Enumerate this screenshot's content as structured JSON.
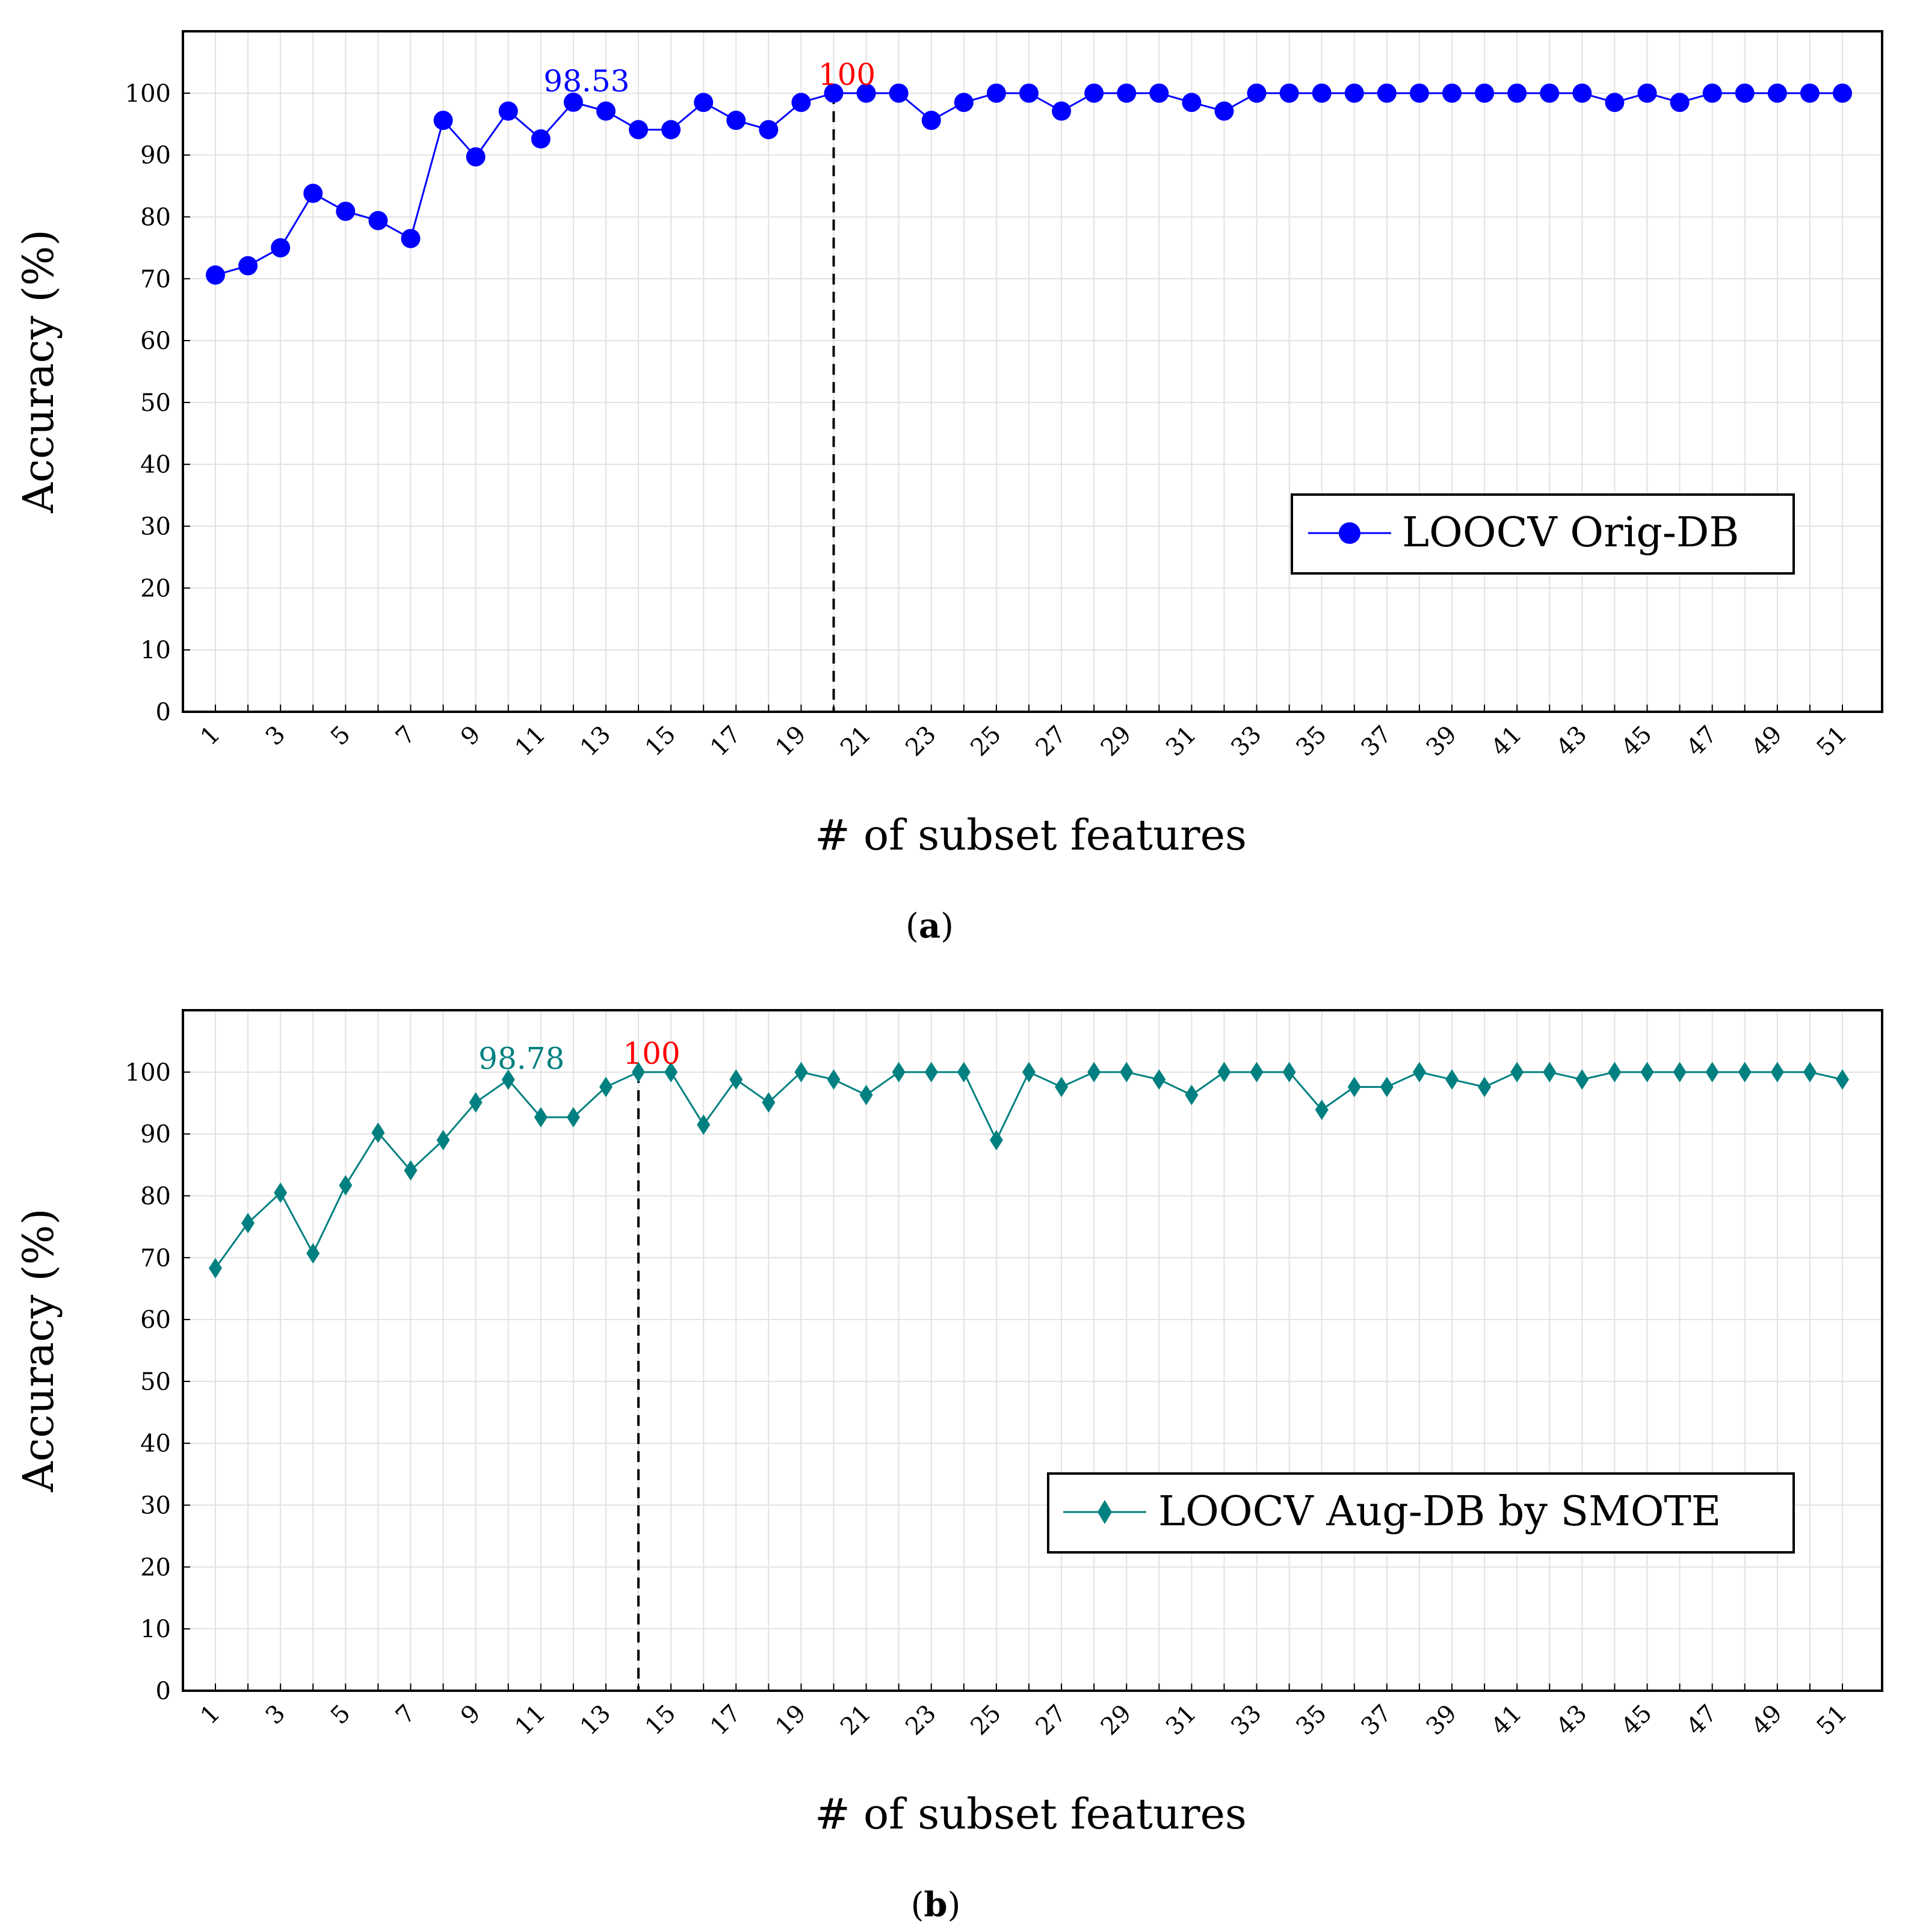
{
  "chart_data": [
    {
      "type": "line",
      "panel_label": "a",
      "xlabel": "# of subset features",
      "ylabel": "Accuracy (%)",
      "ylim": [
        0,
        110
      ],
      "yticks": [
        "0",
        "10",
        "20",
        "30",
        "40",
        "50",
        "60",
        "70",
        "80",
        "90",
        "100"
      ],
      "xticks": [
        "1",
        "3",
        "5",
        "7",
        "9",
        "11",
        "13",
        "15",
        "17",
        "19",
        "21",
        "23",
        "25",
        "27",
        "29",
        "31",
        "33",
        "35",
        "37",
        "39",
        "41",
        "43",
        "45",
        "47",
        "49",
        "51"
      ],
      "grid": true,
      "legend_position": "right",
      "series": [
        {
          "name": "LOOCV Orig-DB",
          "color": "#0000ff",
          "marker": "circle",
          "x": [
            1,
            2,
            3,
            4,
            5,
            6,
            7,
            8,
            9,
            10,
            11,
            12,
            13,
            14,
            15,
            16,
            17,
            18,
            19,
            20,
            21,
            22,
            23,
            24,
            25,
            26,
            27,
            28,
            29,
            30,
            31,
            32,
            33,
            34,
            35,
            36,
            37,
            38,
            39,
            40,
            41,
            42,
            43,
            44,
            45,
            46,
            47,
            48,
            49,
            50,
            51
          ],
          "values": [
            70.6,
            72.1,
            75,
            83.8,
            80.9,
            79.4,
            76.5,
            95.6,
            89.7,
            97.1,
            92.6,
            98.53,
            97.1,
            94.1,
            94.1,
            98.5,
            95.6,
            94.1,
            98.5,
            100,
            100,
            100,
            95.6,
            98.5,
            100,
            100,
            97.1,
            100,
            100,
            100,
            98.5,
            97.1,
            100,
            100,
            100,
            100,
            100,
            100,
            100,
            100,
            100,
            100,
            100,
            98.5,
            100,
            98.5,
            100,
            100,
            100,
            100,
            100
          ]
        }
      ],
      "annotations": [
        {
          "x": 12,
          "y": 98.53,
          "text": "98.53",
          "color": "#0000ff"
        },
        {
          "x": 20,
          "y": 100,
          "text": "100",
          "color": "#ff0000",
          "vline": true
        }
      ]
    },
    {
      "type": "line",
      "panel_label": "b",
      "xlabel": "# of subset features",
      "ylabel": "Accuracy (%)",
      "ylim": [
        0,
        110
      ],
      "yticks": [
        "0",
        "10",
        "20",
        "30",
        "40",
        "50",
        "60",
        "70",
        "80",
        "90",
        "100"
      ],
      "xticks": [
        "1",
        "3",
        "5",
        "7",
        "9",
        "11",
        "13",
        "15",
        "17",
        "19",
        "21",
        "23",
        "25",
        "27",
        "29",
        "31",
        "33",
        "35",
        "37",
        "39",
        "41",
        "43",
        "45",
        "47",
        "49",
        "51"
      ],
      "grid": true,
      "legend_position": "right",
      "series": [
        {
          "name": "LOOCV Aug-DB by SMOTE",
          "color": "#008080",
          "marker": "diamond",
          "x": [
            1,
            2,
            3,
            4,
            5,
            6,
            7,
            8,
            9,
            10,
            11,
            12,
            13,
            14,
            15,
            16,
            17,
            18,
            19,
            20,
            21,
            22,
            23,
            24,
            25,
            26,
            27,
            28,
            29,
            30,
            31,
            32,
            33,
            34,
            35,
            36,
            37,
            38,
            39,
            40,
            41,
            42,
            43,
            44,
            45,
            46,
            47,
            48,
            49,
            50,
            51
          ],
          "values": [
            68.3,
            75.6,
            80.5,
            70.7,
            81.7,
            90.2,
            84.1,
            89,
            95.1,
            98.78,
            92.7,
            92.7,
            97.6,
            100,
            100,
            91.5,
            98.8,
            95.1,
            100,
            98.8,
            96.3,
            100,
            100,
            100,
            89,
            100,
            97.6,
            100,
            100,
            98.8,
            96.3,
            100,
            100,
            100,
            93.9,
            97.6,
            97.6,
            100,
            98.8,
            97.6,
            100,
            100,
            98.8,
            100,
            100,
            100,
            100,
            100,
            100,
            100,
            98.8
          ]
        }
      ],
      "annotations": [
        {
          "x": 10,
          "y": 98.78,
          "text": "98.78",
          "color": "#008080"
        },
        {
          "x": 14,
          "y": 100,
          "text": "100",
          "color": "#ff0000",
          "vline": true
        }
      ]
    }
  ]
}
